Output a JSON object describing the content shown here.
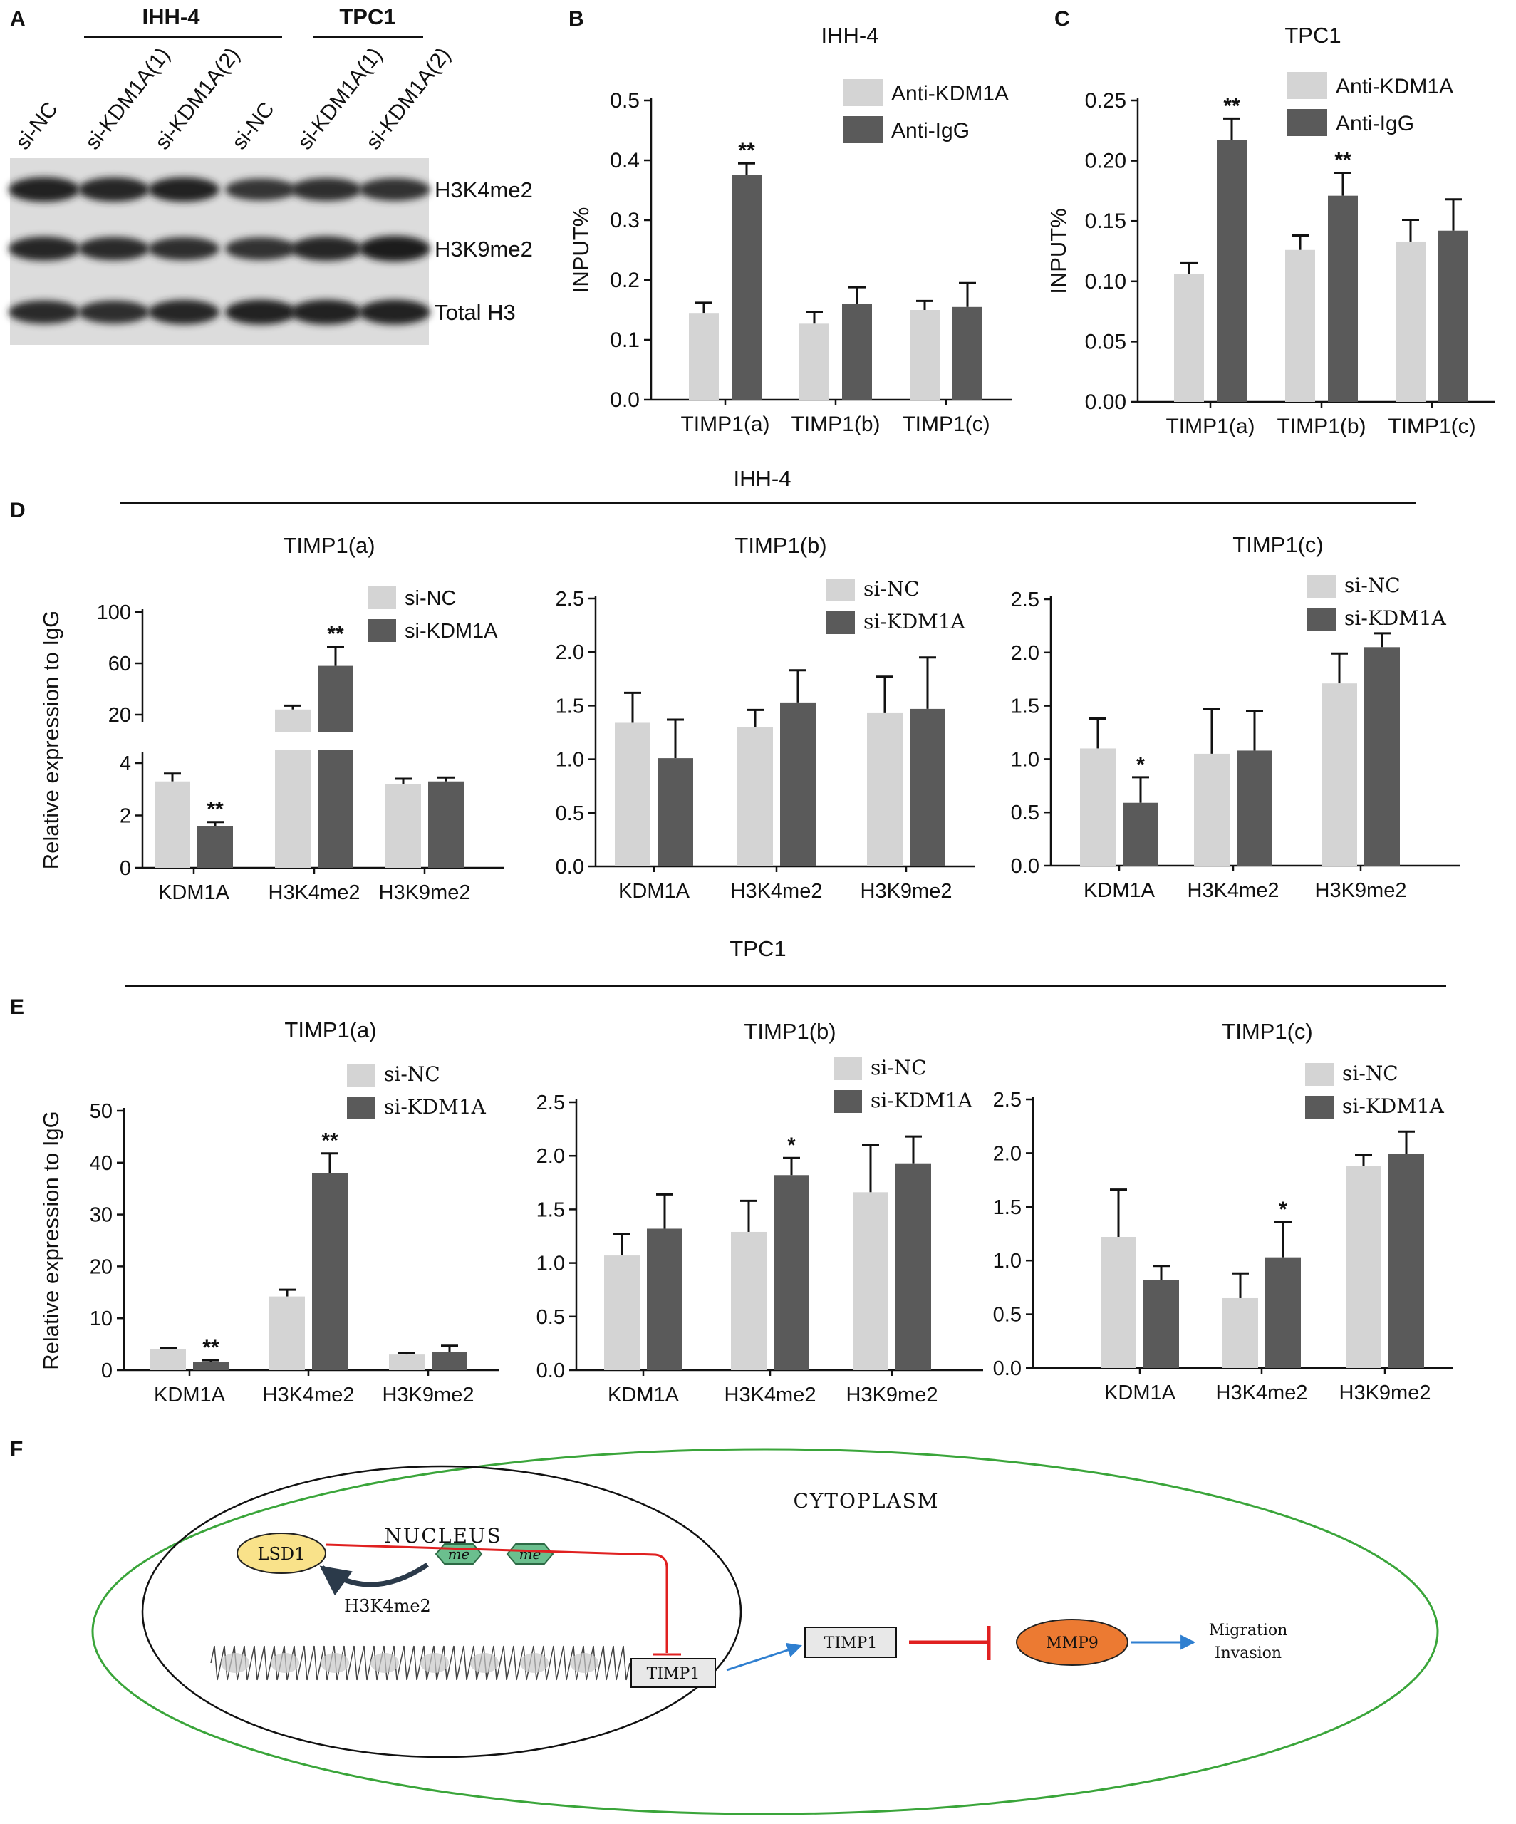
{
  "panel_letters": {
    "A": "A",
    "B": "B",
    "C": "C",
    "D": "D",
    "E": "E",
    "F": "F"
  },
  "panel_a": {
    "groups": [
      {
        "label": "IHH-4"
      },
      {
        "label": "TPC1"
      }
    ],
    "lanes": [
      "si-NC",
      "si-KDM1A(1)",
      "si-KDM1A(2)",
      "si-NC",
      "si-KDM1A(1)",
      "si-KDM1A(2)"
    ],
    "blots": [
      {
        "label": "H3K4me2",
        "intensity": [
          0.95,
          0.92,
          0.93,
          0.75,
          0.82,
          0.8
        ]
      },
      {
        "label": "H3K9me2",
        "intensity": [
          0.9,
          0.85,
          0.82,
          0.8,
          0.92,
          1.0
        ]
      },
      {
        "label": "Total H3",
        "intensity": [
          0.85,
          0.82,
          0.92,
          0.95,
          0.95,
          0.95
        ]
      }
    ]
  },
  "section_titles": {
    "D": "IHH-4",
    "E": "TPC1"
  },
  "colors": {
    "light": "#d4d4d4",
    "dark": "#5a5a5a",
    "lsd1": "#f9e28a",
    "mmp9": "#ec7a32",
    "me": "#6bbf8e",
    "green_ellipse": "#3aa53a",
    "red": "#e02020",
    "blue": "#2f7fd0"
  },
  "chart_data": [
    {
      "id": "B",
      "type": "bar",
      "title": "IHH-4",
      "ylabel": "INPUT%",
      "ylim": [
        0,
        0.5
      ],
      "yticks": [
        "0.0",
        "0.1",
        "0.2",
        "0.3",
        "0.4",
        "0.5"
      ],
      "categories": [
        "TIMP1(a)",
        "TIMP1(b)",
        "TIMP1(c)"
      ],
      "series": [
        {
          "name": "Anti-KDM1A",
          "values": [
            0.145,
            0.127,
            0.15
          ],
          "errors": [
            0.017,
            0.02,
            0.015
          ]
        },
        {
          "name": "Anti-IgG",
          "values": [
            0.375,
            0.16,
            0.155
          ],
          "errors": [
            0.02,
            0.028,
            0.04
          ]
        }
      ],
      "annotations": [
        {
          "cat": 0,
          "series": 1,
          "text": "**"
        }
      ]
    },
    {
      "id": "C",
      "type": "bar",
      "title": "TPC1",
      "ylabel": "INPUT%",
      "ylim": [
        0,
        0.25
      ],
      "yticks": [
        "0.00",
        "0.05",
        "0.10",
        "0.15",
        "0.20",
        "0.25"
      ],
      "categories": [
        "TIMP1(a)",
        "TIMP1(b)",
        "TIMP1(c)"
      ],
      "series": [
        {
          "name": "Anti-KDM1A",
          "values": [
            0.106,
            0.126,
            0.133
          ],
          "errors": [
            0.009,
            0.012,
            0.018
          ]
        },
        {
          "name": "Anti-IgG",
          "values": [
            0.217,
            0.171,
            0.142
          ],
          "errors": [
            0.018,
            0.019,
            0.026
          ]
        }
      ],
      "annotations": [
        {
          "cat": 0,
          "series": 1,
          "text": "**"
        },
        {
          "cat": 1,
          "series": 1,
          "text": "**"
        }
      ]
    },
    {
      "id": "D1",
      "type": "bar",
      "title": "TIMP1(a)",
      "ylabel": "Relative expression to IgG",
      "broken_axis": true,
      "lower_ylim": [
        0,
        4
      ],
      "upper_ylim": [
        20,
        100
      ],
      "lower_ticks": [
        "0",
        "2",
        "4"
      ],
      "upper_ticks": [
        "20",
        "60",
        "100"
      ],
      "categories": [
        "KDM1A",
        "H3K4me2",
        "H3K9me2"
      ],
      "series": [
        {
          "name": "si-NC",
          "values": [
            3.3,
            24,
            3.2
          ],
          "errors": [
            0.3,
            3,
            0.2
          ]
        },
        {
          "name": "si-KDM1A",
          "values": [
            1.6,
            58,
            3.3
          ],
          "errors": [
            0.15,
            15,
            0.15
          ]
        }
      ],
      "annotations": [
        {
          "cat": 0,
          "series": 1,
          "text": "**"
        },
        {
          "cat": 1,
          "series": 1,
          "text": "**"
        }
      ]
    },
    {
      "id": "D2",
      "type": "bar",
      "title": "TIMP1(b)",
      "ylim": [
        0,
        2.5
      ],
      "yticks": [
        "0.0",
        "0.5",
        "1.0",
        "1.5",
        "2.0",
        "2.5"
      ],
      "categories": [
        "KDM1A",
        "H3K4me2",
        "H3K9me2"
      ],
      "series": [
        {
          "name": "si-NC",
          "values": [
            1.34,
            1.3,
            1.43
          ],
          "errors": [
            0.28,
            0.16,
            0.34
          ]
        },
        {
          "name": "si-KDM1A",
          "values": [
            1.01,
            1.53,
            1.47
          ],
          "errors": [
            0.36,
            0.3,
            0.48
          ]
        }
      ],
      "annotations": []
    },
    {
      "id": "D3",
      "type": "bar",
      "title": "TIMP1(c)",
      "ylim": [
        0,
        2.5
      ],
      "yticks": [
        "0.0",
        "0.5",
        "1.0",
        "1.5",
        "2.0",
        "2.5"
      ],
      "categories": [
        "KDM1A",
        "H3K4me2",
        "H3K9me2"
      ],
      "series": [
        {
          "name": "si-NC",
          "values": [
            1.1,
            1.05,
            1.71
          ],
          "errors": [
            0.28,
            0.42,
            0.28
          ]
        },
        {
          "name": "si-KDM1A",
          "values": [
            0.59,
            1.08,
            2.05
          ],
          "errors": [
            0.24,
            0.37,
            0.13
          ]
        }
      ],
      "annotations": [
        {
          "cat": 0,
          "series": 1,
          "text": "*"
        }
      ]
    },
    {
      "id": "E1",
      "type": "bar",
      "title": "TIMP1(a)",
      "ylabel": "Relative expression to IgG",
      "ylim": [
        0,
        50
      ],
      "yticks": [
        "0",
        "10",
        "20",
        "30",
        "40",
        "50"
      ],
      "categories": [
        "KDM1A",
        "H3K4me2",
        "H3K9me2"
      ],
      "series": [
        {
          "name": "si-NC",
          "values": [
            4,
            14.2,
            3
          ],
          "errors": [
            0.3,
            1.3,
            0.3
          ]
        },
        {
          "name": "si-KDM1A",
          "values": [
            1.6,
            38,
            3.5
          ],
          "errors": [
            0.3,
            3.8,
            1.2
          ]
        }
      ],
      "annotations": [
        {
          "cat": 0,
          "series": 1,
          "text": "**"
        },
        {
          "cat": 1,
          "series": 1,
          "text": "**"
        }
      ]
    },
    {
      "id": "E2",
      "type": "bar",
      "title": "TIMP1(b)",
      "ylim": [
        0,
        2.5
      ],
      "yticks": [
        "0.0",
        "0.5",
        "1.0",
        "1.5",
        "2.0",
        "2.5"
      ],
      "categories": [
        "KDM1A",
        "H3K4me2",
        "H3K9me2"
      ],
      "series": [
        {
          "name": "si-NC",
          "values": [
            1.07,
            1.29,
            1.66
          ],
          "errors": [
            0.2,
            0.29,
            0.44
          ]
        },
        {
          "name": "si-KDM1A",
          "values": [
            1.32,
            1.82,
            1.93
          ],
          "errors": [
            0.32,
            0.16,
            0.25
          ]
        }
      ],
      "annotations": [
        {
          "cat": 1,
          "series": 1,
          "text": "*"
        }
      ]
    },
    {
      "id": "E3",
      "type": "bar",
      "title": "TIMP1(c)",
      "ylim": [
        0,
        2.5
      ],
      "yticks": [
        "0.0",
        "0.5",
        "1.0",
        "1.5",
        "2.0",
        "2.5"
      ],
      "categories": [
        "KDM1A",
        "H3K4me2",
        "H3K9me2"
      ],
      "series": [
        {
          "name": "si-NC",
          "values": [
            1.22,
            0.65,
            1.88
          ],
          "errors": [
            0.44,
            0.23,
            0.1
          ]
        },
        {
          "name": "si-KDM1A",
          "values": [
            0.82,
            1.03,
            1.99
          ],
          "errors": [
            0.13,
            0.33,
            0.21
          ]
        }
      ],
      "annotations": [
        {
          "cat": 1,
          "series": 1,
          "text": "*"
        }
      ]
    }
  ],
  "diagram": {
    "cytoplasm": "CYTOPLASM",
    "nucleus": "NUCLEUS",
    "lsd1": "LSD1",
    "me1": "me",
    "me2": "me",
    "mark": "H3K4me2",
    "timp1_gene": "TIMP1",
    "timp1_protein": "TIMP1",
    "mmp9": "MMP9",
    "outcome_1": "Migration",
    "outcome_2": "Invasion"
  }
}
